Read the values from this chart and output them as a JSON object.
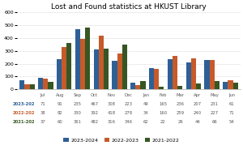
{
  "title": "Lost and Found statistics at HKUST Library",
  "months": [
    "Jul",
    "Aug",
    "Sep",
    "Oct",
    "Nov",
    "Dec",
    "Jan",
    "Feb",
    "Mar",
    "Apr",
    "May",
    "Jun"
  ],
  "series": {
    "2023-2024": [
      71,
      91,
      235,
      467,
      308,
      223,
      49,
      165,
      236,
      207,
      231,
      61
    ],
    "2022-2023": [
      38,
      82,
      330,
      392,
      418,
      278,
      34,
      160,
      259,
      240,
      227,
      71
    ],
    "2021-2022": [
      37,
      60,
      361,
      482,
      316,
      346,
      62,
      22,
      26,
      44,
      66,
      54
    ]
  },
  "colors": {
    "2023-2024": "#2E6096",
    "2022-2023": "#C55A2B",
    "2021-2022": "#375623"
  },
  "ylim": [
    0,
    600
  ],
  "yticks": [
    0,
    100,
    200,
    300,
    400,
    500,
    600
  ],
  "background_color": "#FFFFFF",
  "title_fontsize": 6.5,
  "tick_fontsize": 4.5,
  "legend_fontsize": 4.5,
  "table_fontsize": 3.8
}
